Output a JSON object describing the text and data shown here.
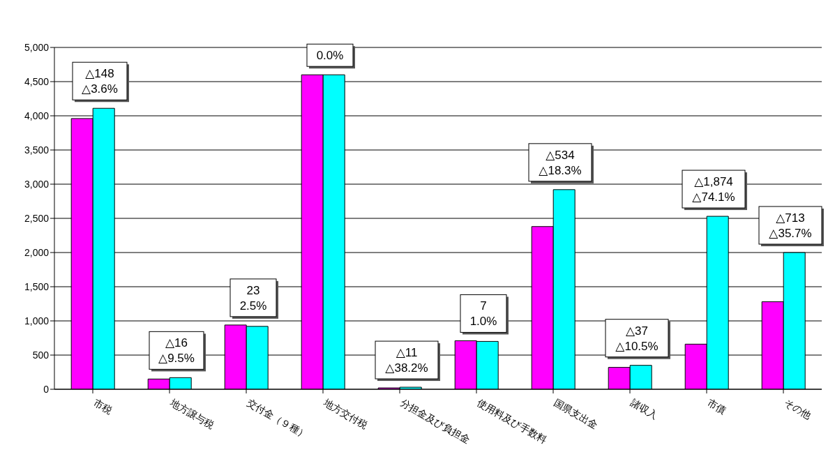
{
  "chart_data": {
    "type": "bar",
    "categories": [
      "市税",
      "地方譲与税",
      "交付金（９種）",
      "地方交付税",
      "分担金及び負担金",
      "使用料及び手数料",
      "国県支出金",
      "諸収入",
      "市債",
      "その他"
    ],
    "series": [
      {
        "color": "#ff00ff",
        "values": [
          3960,
          150,
          940,
          4600,
          20,
          710,
          2380,
          320,
          660,
          1280
        ]
      },
      {
        "color": "#00ffff",
        "values": [
          4110,
          170,
          920,
          4600,
          30,
          700,
          2920,
          350,
          2530,
          2000
        ]
      }
    ],
    "ylim": [
      0,
      5000
    ],
    "yticks": [
      0,
      500,
      {
        "value": 1000,
        "label": "1,000"
      },
      {
        "value": 1500,
        "label": "1,500"
      },
      {
        "value": 2000,
        "label": "2,000"
      },
      {
        "value": 2500,
        "label": "2,500"
      },
      {
        "value": 3000,
        "label": "3,000"
      },
      {
        "value": 3500,
        "label": "3,500"
      },
      {
        "value": 4000,
        "label": "4,000"
      },
      {
        "value": 4500,
        "label": "4,500"
      },
      {
        "value": 5000,
        "label": "5,000"
      }
    ],
    "grid": "y",
    "legend": false,
    "annotations": [
      {
        "text": "△148\n△3.6%",
        "x": "市税",
        "y": 4110
      },
      {
        "text": "△16\n△9.5%",
        "x": "地方譲与税",
        "y": 170
      },
      {
        "text": "23\n2.5%",
        "x": "交付金（９種）",
        "y": 940
      },
      {
        "text": "0.0%",
        "x": "地方交付税",
        "y": 4600
      },
      {
        "text": "△11\n△38.2%",
        "x": "分担金及び負担金",
        "y": 30
      },
      {
        "text": "7\n1.0%",
        "x": "使用料及び手数料",
        "y": 710
      },
      {
        "text": "△534\n△18.3%",
        "x": "国県支出金",
        "y": 2920
      },
      {
        "text": "△37\n△10.5%",
        "x": "諸収入",
        "y": 350
      },
      {
        "text": "△1,874\n△74.1%",
        "x": "市債",
        "y": 2530
      },
      {
        "text": "△713\n△35.7%",
        "x": "その他",
        "y": 2000
      }
    ]
  }
}
